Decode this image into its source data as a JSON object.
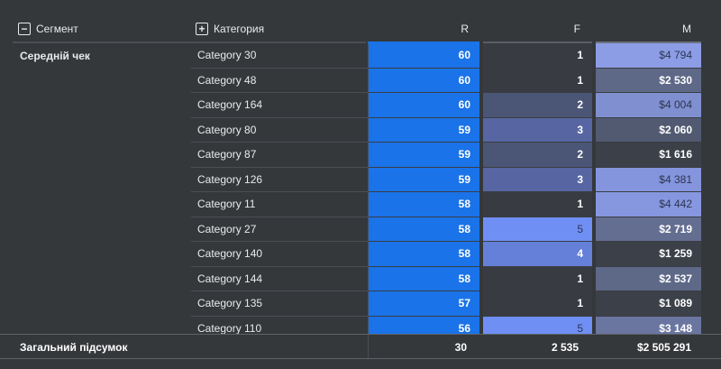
{
  "header": {
    "segment_label": "Сегмент",
    "segment_toggle": "−",
    "category_label": "Категория",
    "category_toggle": "+",
    "col_r": "R",
    "col_f": "F",
    "col_m": "M"
  },
  "segment": "Середній чек",
  "rows": [
    {
      "category": "Category 30",
      "r": "60",
      "f": "1",
      "m": "$4 794"
    },
    {
      "category": "Category 48",
      "r": "60",
      "f": "1",
      "m": "$2 530"
    },
    {
      "category": "Category 164",
      "r": "60",
      "f": "2",
      "m": "$4 004"
    },
    {
      "category": "Category 80",
      "r": "59",
      "f": "3",
      "m": "$2 060"
    },
    {
      "category": "Category 87",
      "r": "59",
      "f": "2",
      "m": "$1 616"
    },
    {
      "category": "Category 126",
      "r": "59",
      "f": "3",
      "m": "$4 381"
    },
    {
      "category": "Category 11",
      "r": "58",
      "f": "1",
      "m": "$4 442"
    },
    {
      "category": "Category 27",
      "r": "58",
      "f": "5",
      "m": "$2 719"
    },
    {
      "category": "Category 140",
      "r": "58",
      "f": "4",
      "m": "$1 259"
    },
    {
      "category": "Category 144",
      "r": "58",
      "f": "1",
      "m": "$2 537"
    },
    {
      "category": "Category 135",
      "r": "57",
      "f": "1",
      "m": "$1 089"
    },
    {
      "category": "Category 110",
      "r": "56",
      "f": "5",
      "m": "$3 148"
    }
  ],
  "f_colors": [
    "#383b41",
    "#383b41",
    "#4b5575",
    "#5766a2",
    "#4b5575",
    "#5766a2",
    "#383b41",
    "#6f8ff4",
    "#6580d8",
    "#383b41",
    "#383b41",
    "#6f8ff4"
  ],
  "m_colors": [
    "#8c9de6",
    "#5e6887",
    "#7f8fcf",
    "#525a72",
    "#3c4049",
    "#8494dd",
    "#8697e0",
    "#646e91",
    "#3c4049",
    "#5e6887",
    "#3c4049",
    "#6a76a0"
  ],
  "f_light": [
    false,
    false,
    false,
    false,
    false,
    false,
    false,
    true,
    false,
    false,
    false,
    true
  ],
  "m_light": [
    true,
    false,
    true,
    false,
    false,
    true,
    true,
    false,
    false,
    false,
    false,
    false
  ],
  "footer": {
    "label": "Загальний підсумок",
    "r": "30",
    "f": "2 535",
    "m": "$2 505 291"
  }
}
